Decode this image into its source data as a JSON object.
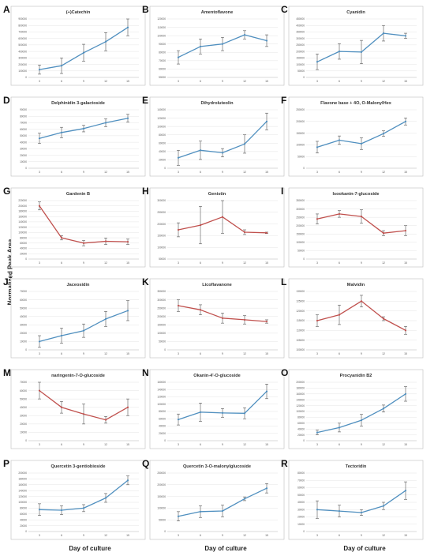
{
  "figure": {
    "y_axis_label": "Normalized Peak Area",
    "x_axis_label": "Day of culture",
    "colors": {
      "blue": "#4f8fbf",
      "red": "#c0504d",
      "grid": "#e4e4e4",
      "frame": "#bdbdbd"
    }
  },
  "chart_data": [
    {
      "letter": "A",
      "title": "(+)Catechin",
      "type": "line",
      "color": "blue",
      "categories": [
        "3",
        "6",
        "9",
        "12",
        "15"
      ],
      "values": [
        120000,
        180000,
        380000,
        550000,
        770000
      ],
      "errors": [
        70000,
        120000,
        130000,
        140000,
        130000
      ],
      "yticks": [
        "0",
        "100000",
        "200000",
        "300000",
        "400000",
        "500000",
        "600000",
        "700000",
        "800000",
        "900000"
      ],
      "ylim": [
        0,
        900000
      ]
    },
    {
      "letter": "B",
      "title": "Amentoflavone",
      "type": "line",
      "color": "blue",
      "categories": [
        "3",
        "6",
        "9",
        "12",
        "15"
      ],
      "values": [
        74000,
        87000,
        90000,
        101000,
        94000
      ],
      "errors": [
        8000,
        9000,
        8000,
        5000,
        7000
      ],
      "yticks": [
        "50000",
        "60000",
        "70000",
        "80000",
        "90000",
        "100000",
        "110000",
        "120000"
      ],
      "ylim": [
        50000,
        120000
      ]
    },
    {
      "letter": "C",
      "title": "Cyanidin",
      "type": "line",
      "color": "blue",
      "categories": [
        "3",
        "6",
        "9",
        "12",
        "15"
      ],
      "values": [
        120000,
        200000,
        195000,
        340000,
        320000
      ],
      "errors": [
        60000,
        60000,
        90000,
        60000,
        20000
      ],
      "yticks": [
        "0",
        "50000",
        "100000",
        "150000",
        "200000",
        "250000",
        "300000",
        "350000",
        "400000",
        "450000"
      ],
      "ylim": [
        0,
        450000
      ]
    },
    {
      "letter": "D",
      "title": "Delphinidin 3-galactoside",
      "type": "line",
      "color": "blue",
      "categories": [
        "3",
        "6",
        "9",
        "12",
        "15"
      ],
      "values": [
        46000,
        55000,
        61000,
        70000,
        77000
      ],
      "errors": [
        8000,
        8000,
        5000,
        6000,
        6000
      ],
      "yticks": [
        "0",
        "10000",
        "20000",
        "30000",
        "40000",
        "50000",
        "60000",
        "70000",
        "80000",
        "90000"
      ],
      "ylim": [
        0,
        90000
      ]
    },
    {
      "letter": "E",
      "title": "Dihydroluteolin",
      "type": "line",
      "color": "blue",
      "categories": [
        "3",
        "6",
        "9",
        "12",
        "15"
      ],
      "values": [
        25000,
        43000,
        37000,
        58000,
        112000
      ],
      "errors": [
        18000,
        22000,
        10000,
        22000,
        20000
      ],
      "yticks": [
        "0",
        "20000",
        "40000",
        "60000",
        "80000",
        "100000",
        "120000",
        "140000"
      ],
      "ylim": [
        0,
        140000
      ]
    },
    {
      "letter": "F",
      "title": "Flavone base + 4O, O-MalonylHex",
      "type": "line",
      "color": "blue",
      "categories": [
        "3",
        "6",
        "9",
        "12",
        "15"
      ],
      "values": [
        90000,
        120000,
        105000,
        148000,
        200000
      ],
      "errors": [
        25000,
        18000,
        25000,
        12000,
        15000
      ],
      "yticks": [
        "0",
        "50000",
        "100000",
        "150000",
        "200000",
        "250000"
      ],
      "ylim": [
        0,
        250000
      ]
    },
    {
      "letter": "G",
      "title": "Gardenin B",
      "type": "line",
      "color": "red",
      "categories": [
        "3",
        "6",
        "9",
        "12",
        "15"
      ],
      "values": [
        200000,
        80000,
        60000,
        67000,
        65000
      ],
      "errors": [
        15000,
        8000,
        10000,
        12000,
        10000
      ],
      "yticks": [
        "0",
        "20000",
        "40000",
        "60000",
        "80000",
        "100000",
        "120000",
        "140000",
        "160000",
        "180000",
        "200000",
        "220000"
      ],
      "ylim": [
        0,
        220000
      ]
    },
    {
      "letter": "H",
      "title": "Genistin",
      "type": "line",
      "color": "red",
      "categories": [
        "3",
        "6",
        "9",
        "12",
        "15"
      ],
      "values": [
        175000,
        195000,
        230000,
        165000,
        162000
      ],
      "errors": [
        30000,
        80000,
        70000,
        10000,
        3000
      ],
      "yticks": [
        "50000",
        "100000",
        "150000",
        "200000",
        "250000",
        "300000"
      ],
      "ylim": [
        50000,
        300000
      ]
    },
    {
      "letter": "I",
      "title": "Isookanin-7-glucoside",
      "type": "line",
      "color": "red",
      "categories": [
        "3",
        "6",
        "9",
        "12",
        "15"
      ],
      "values": [
        240000,
        270000,
        255000,
        155000,
        170000
      ],
      "errors": [
        30000,
        20000,
        40000,
        15000,
        30000
      ],
      "yticks": [
        "0",
        "50000",
        "100000",
        "150000",
        "200000",
        "250000",
        "300000",
        "350000"
      ],
      "ylim": [
        0,
        350000
      ]
    },
    {
      "letter": "J",
      "title": "Jaceosidin",
      "type": "line",
      "color": "blue",
      "categories": [
        "3",
        "6",
        "9",
        "12",
        "15"
      ],
      "values": [
        10000,
        17000,
        23000,
        37000,
        47000
      ],
      "errors": [
        7000,
        9000,
        8000,
        9000,
        12000
      ],
      "yticks": [
        "0",
        "10000",
        "20000",
        "30000",
        "40000",
        "50000",
        "60000",
        "70000"
      ],
      "ylim": [
        0,
        70000
      ]
    },
    {
      "letter": "K",
      "title": "Licoflavanone",
      "type": "line",
      "color": "red",
      "categories": [
        "3",
        "6",
        "9",
        "12",
        "15"
      ],
      "values": [
        265000,
        240000,
        190000,
        180000,
        170000
      ],
      "errors": [
        35000,
        30000,
        30000,
        25000,
        10000
      ],
      "yticks": [
        "0",
        "50000",
        "100000",
        "150000",
        "200000",
        "250000",
        "300000",
        "350000"
      ],
      "ylim": [
        0,
        350000
      ]
    },
    {
      "letter": "L",
      "title": "Malvidin",
      "type": "line",
      "color": "red",
      "categories": [
        "3",
        "6",
        "9",
        "12",
        "15"
      ],
      "values": [
        115000,
        118000,
        125000,
        116000,
        110000
      ],
      "errors": [
        3000,
        5000,
        3000,
        1000,
        2000
      ],
      "yticks": [
        "100000",
        "105000",
        "110000",
        "115000",
        "120000",
        "125000",
        "130000"
      ],
      "ylim": [
        100000,
        130000
      ]
    },
    {
      "letter": "M",
      "title": "naringenin-7-O-glucoside",
      "type": "line",
      "color": "red",
      "categories": [
        "3",
        "6",
        "9",
        "12",
        "15"
      ],
      "values": [
        60000,
        40000,
        32000,
        25000,
        40000
      ],
      "errors": [
        10000,
        7000,
        12000,
        4000,
        10000
      ],
      "yticks": [
        "0",
        "10000",
        "20000",
        "30000",
        "40000",
        "50000",
        "60000",
        "70000"
      ],
      "ylim": [
        0,
        70000
      ]
    },
    {
      "letter": "N",
      "title": "Okanin-4'-O-glucoside",
      "type": "line",
      "color": "blue",
      "categories": [
        "3",
        "6",
        "9",
        "12",
        "15"
      ],
      "values": [
        58000,
        78000,
        76000,
        75000,
        135000
      ],
      "errors": [
        15000,
        25000,
        12000,
        15000,
        20000
      ],
      "yticks": [
        "0",
        "20000",
        "40000",
        "60000",
        "80000",
        "100000",
        "120000",
        "140000",
        "160000"
      ],
      "ylim": [
        0,
        160000
      ]
    },
    {
      "letter": "O",
      "title": "Procyanidin B2",
      "type": "line",
      "color": "blue",
      "categories": [
        "3",
        "6",
        "9",
        "12",
        "15"
      ],
      "values": [
        28000,
        45000,
        70000,
        110000,
        160000
      ],
      "errors": [
        8000,
        15000,
        20000,
        12000,
        25000
      ],
      "yticks": [
        "0",
        "20000",
        "40000",
        "60000",
        "80000",
        "100000",
        "120000",
        "140000",
        "160000",
        "180000",
        "200000"
      ],
      "ylim": [
        0,
        200000
      ]
    },
    {
      "letter": "P",
      "title": "Quercetin 3-gentiobioside",
      "type": "line",
      "color": "blue",
      "categories": [
        "3",
        "6",
        "9",
        "12",
        "15"
      ],
      "values": [
        75000,
        73000,
        80000,
        115000,
        175000
      ],
      "errors": [
        20000,
        15000,
        12000,
        15000,
        15000
      ],
      "yticks": [
        "0",
        "20000",
        "40000",
        "60000",
        "80000",
        "100000",
        "120000",
        "140000",
        "160000",
        "180000",
        "200000"
      ],
      "ylim": [
        0,
        200000
      ]
    },
    {
      "letter": "Q",
      "title": "Quercetin 3-O-malonylglucoside",
      "type": "line",
      "color": "blue",
      "categories": [
        "3",
        "6",
        "9",
        "12",
        "15"
      ],
      "values": [
        65000,
        85000,
        88000,
        140000,
        185000
      ],
      "errors": [
        20000,
        25000,
        25000,
        8000,
        20000
      ],
      "yticks": [
        "0",
        "50000",
        "100000",
        "150000",
        "200000",
        "250000"
      ],
      "ylim": [
        0,
        250000
      ]
    },
    {
      "letter": "R",
      "title": "Tectoridin",
      "type": "line",
      "color": "blue",
      "categories": [
        "3",
        "6",
        "9",
        "12",
        "15"
      ],
      "values": [
        30000,
        28000,
        26000,
        35000,
        56000
      ],
      "errors": [
        12000,
        8000,
        4000,
        5000,
        12000
      ],
      "yticks": [
        "0",
        "10000",
        "20000",
        "30000",
        "40000",
        "50000",
        "60000",
        "70000",
        "80000"
      ],
      "ylim": [
        0,
        80000
      ]
    }
  ]
}
